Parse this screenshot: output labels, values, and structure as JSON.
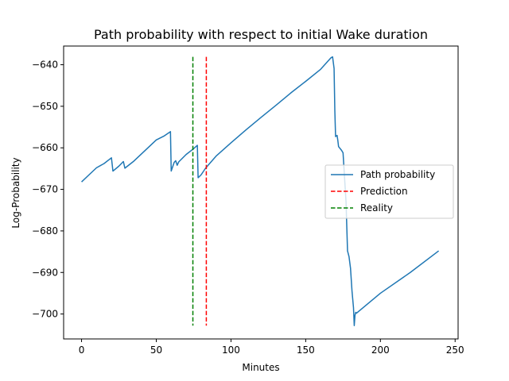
{
  "chart_data": {
    "type": "line",
    "title": "Path probability with respect to initial Wake duration",
    "xlabel": "Minutes",
    "ylabel": "Log-Probability",
    "xlim": [
      -12,
      252
    ],
    "ylim": [
      -706,
      -635.5
    ],
    "xticks": [
      0,
      50,
      100,
      150,
      200,
      250
    ],
    "yticks": [
      -700,
      -690,
      -680,
      -670,
      -660,
      -650,
      -640
    ],
    "grid": false,
    "legend_position": "center-right",
    "series": [
      {
        "name": "Path probability",
        "style": "solid",
        "color": "#1f77b4",
        "x": [
          0,
          5,
          10,
          15,
          20,
          21,
          25,
          28,
          29,
          35,
          40,
          45,
          50,
          55,
          59.5,
          60,
          62,
          63,
          64,
          65,
          70,
          75,
          77.5,
          78,
          80,
          83,
          90,
          100,
          110,
          120,
          130,
          140,
          150,
          160,
          167,
          168,
          169,
          169.5,
          170,
          171,
          171.5,
          172,
          174,
          175,
          177,
          178,
          179,
          180,
          181,
          182,
          182.5,
          183,
          183.5,
          184,
          200,
          220,
          239
        ],
        "y": [
          -668.2,
          -666.5,
          -664.8,
          -663.8,
          -662.4,
          -665.6,
          -664.4,
          -663.3,
          -664.9,
          -663.2,
          -661.5,
          -659.8,
          -658.1,
          -657.2,
          -656.1,
          -665.6,
          -663.5,
          -663.1,
          -664.2,
          -663.4,
          -661.6,
          -660.2,
          -659.4,
          -667.2,
          -666.5,
          -664.9,
          -662.0,
          -658.8,
          -655.7,
          -652.7,
          -649.8,
          -646.8,
          -644.0,
          -641.1,
          -638.3,
          -638.1,
          -640.9,
          -651.0,
          -657.3,
          -657.0,
          -658.2,
          -659.7,
          -660.6,
          -661.2,
          -673.0,
          -684.8,
          -686.2,
          -689.0,
          -694.5,
          -698.5,
          -702.8,
          -700.3,
          -699.6,
          -699.8,
          -695.0,
          -690.0,
          -684.8
        ]
      },
      {
        "name": "Prediction",
        "style": "dashed",
        "color": "#ff0000",
        "x": [
          83.5,
          83.5
        ],
        "y": [
          -638.1,
          -702.8
        ]
      },
      {
        "name": "Reality",
        "style": "dashed",
        "color": "#008000",
        "x": [
          74.5,
          74.5
        ],
        "y": [
          -638.1,
          -702.8
        ]
      }
    ]
  }
}
